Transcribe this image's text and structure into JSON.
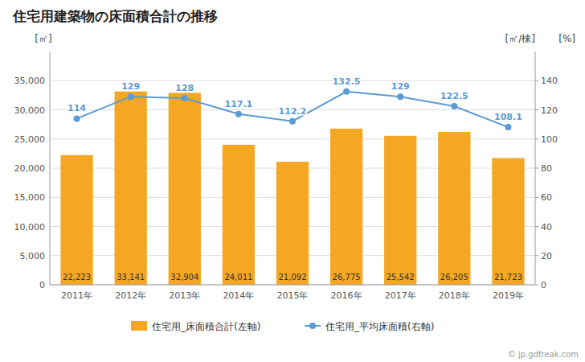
{
  "chart_data": {
    "type": "bar",
    "title": "住宅用建築物の床面積合計の推移",
    "categories": [
      "2011年",
      "2012年",
      "2013年",
      "2014年",
      "2015年",
      "2016年",
      "2017年",
      "2018年",
      "2019年"
    ],
    "series": [
      {
        "name": "住宅用_床面積合計(左軸)",
        "type": "bar",
        "color": "#F5A623",
        "values": [
          22223,
          33141,
          32904,
          24011,
          21092,
          26775,
          25542,
          26205,
          21723
        ],
        "value_labels": [
          "22,223",
          "33,141",
          "32,904",
          "24,011",
          "21,092",
          "26,775",
          "25,542",
          "26,205",
          "21,723"
        ]
      },
      {
        "name": "住宅用_平均床面積(右軸)",
        "type": "line",
        "axis": "y2",
        "color": "#5B9BD5",
        "marker": "circle",
        "values": [
          114,
          129,
          128,
          117.1,
          112.2,
          132.5,
          129,
          122.5,
          108.1
        ]
      }
    ],
    "y_label": "[㎡]",
    "y2_label": "[㎡/棟]",
    "annotations": [
      "[%]",
      "© jp.gdfreak.com"
    ],
    "ylim": [
      0,
      40000
    ],
    "yticks": [
      0,
      {
        "value": 5000,
        "label": "5,000"
      },
      {
        "value": 10000,
        "label": "10,000"
      },
      {
        "value": 15000,
        "label": "15,000"
      },
      {
        "value": 20000,
        "label": "20,000"
      },
      {
        "value": 25000,
        "label": "25,000"
      },
      {
        "value": 30000,
        "label": "30,000"
      },
      {
        "value": 35000,
        "label": "35,000"
      }
    ],
    "y2lim": [
      0,
      160
    ],
    "y2ticks": [
      0,
      20,
      40,
      60,
      80,
      100,
      120,
      140
    ],
    "grid": true,
    "legend": "bottom",
    "data_labels": true
  }
}
